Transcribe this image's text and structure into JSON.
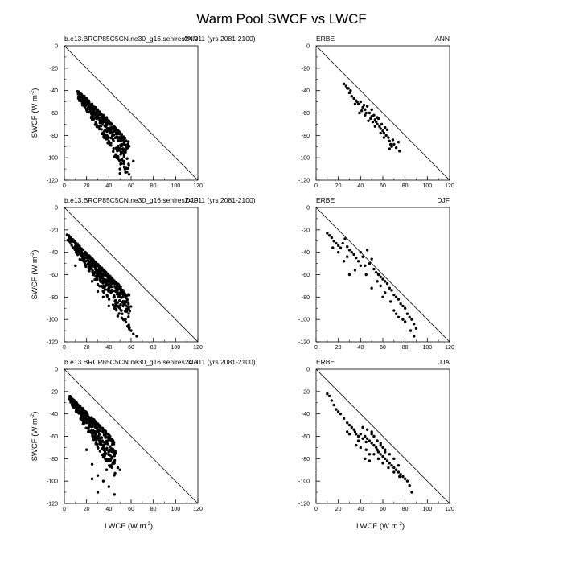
{
  "title": "Warm Pool SWCF vs LWCF",
  "x_axis_label": "LWCF (W m",
  "y_axis_label": "SWCF (W m",
  "unit_superscript": "-2",
  "chart_data": [
    {
      "type": "scatter",
      "left_label": "b.e13.BRCP85C5CN.ne30_g16.sehires24.011 (yrs 2081-2100)",
      "right_label": "ANN",
      "xlim": [
        0,
        120
      ],
      "ylim": [
        -120,
        0
      ],
      "xticks": [
        "0",
        "20",
        "40",
        "60",
        "80",
        "100",
        "120"
      ],
      "yticks": [
        "0",
        "-20",
        "-40",
        "-60",
        "-80",
        "-100",
        "-120"
      ],
      "reference_line": "one-to-one",
      "seed": 11,
      "n": 380,
      "points": [
        [
          13,
          -41
        ],
        [
          15,
          -43
        ],
        [
          18,
          -45
        ],
        [
          20,
          -47
        ],
        [
          22,
          -49
        ],
        [
          25,
          -52
        ],
        [
          28,
          -55
        ],
        [
          30,
          -57
        ],
        [
          32,
          -59
        ],
        [
          35,
          -62
        ],
        [
          38,
          -64
        ],
        [
          40,
          -67
        ],
        [
          42,
          -70
        ],
        [
          45,
          -73
        ],
        [
          48,
          -78
        ],
        [
          50,
          -82
        ],
        [
          52,
          -88
        ],
        [
          55,
          -95
        ],
        [
          45,
          -99
        ],
        [
          50,
          -110
        ],
        [
          55,
          -113
        ],
        [
          58,
          -107
        ],
        [
          62,
          -103
        ],
        [
          50,
          -114
        ],
        [
          47,
          -100
        ],
        [
          53,
          -92
        ]
      ]
    },
    {
      "type": "scatter",
      "left_label": "ERBE",
      "right_label": "ANN",
      "xlim": [
        0,
        120
      ],
      "ylim": [
        -120,
        0
      ],
      "xticks": [
        "0",
        "20",
        "40",
        "60",
        "80",
        "100",
        "120"
      ],
      "yticks": [
        "0",
        "-20",
        "-40",
        "-60",
        "-80",
        "-100",
        "-120"
      ],
      "reference_line": "one-to-one",
      "seed": 12,
      "n": 0,
      "points": [
        [
          25,
          -34
        ],
        [
          27,
          -36
        ],
        [
          29,
          -38
        ],
        [
          30,
          -42
        ],
        [
          32,
          -45
        ],
        [
          34,
          -47
        ],
        [
          36,
          -49
        ],
        [
          38,
          -52
        ],
        [
          40,
          -50
        ],
        [
          42,
          -55
        ],
        [
          44,
          -57
        ],
        [
          45,
          -60
        ],
        [
          46,
          -54
        ],
        [
          48,
          -60
        ],
        [
          50,
          -63
        ],
        [
          50,
          -57
        ],
        [
          52,
          -62
        ],
        [
          53,
          -66
        ],
        [
          54,
          -68
        ],
        [
          55,
          -70
        ],
        [
          56,
          -65
        ],
        [
          57,
          -72
        ],
        [
          58,
          -74
        ],
        [
          59,
          -70
        ],
        [
          60,
          -76
        ],
        [
          61,
          -78
        ],
        [
          62,
          -73
        ],
        [
          63,
          -80
        ],
        [
          64,
          -75
        ],
        [
          65,
          -82
        ],
        [
          66,
          -85
        ],
        [
          67,
          -88
        ],
        [
          68,
          -90
        ],
        [
          70,
          -88
        ],
        [
          72,
          -91
        ],
        [
          75,
          -94
        ],
        [
          74,
          -86
        ],
        [
          69,
          -84
        ],
        [
          44,
          -62
        ],
        [
          41,
          -58
        ],
        [
          39,
          -60
        ],
        [
          47,
          -67
        ],
        [
          35,
          -52
        ],
        [
          31,
          -40
        ],
        [
          28,
          -38
        ],
        [
          37,
          -50
        ],
        [
          43,
          -53
        ],
        [
          49,
          -65
        ],
        [
          51,
          -68
        ],
        [
          58,
          -78
        ],
        [
          61,
          -82
        ],
        [
          66,
          -92
        ],
        [
          55,
          -64
        ],
        [
          53,
          -72
        ]
      ]
    },
    {
      "type": "scatter",
      "left_label": "b.e13.BRCP85C5CN.ne30_g16.sehires24.011 (yrs 2081-2100)",
      "right_label": "DJF",
      "xlim": [
        0,
        120
      ],
      "ylim": [
        -120,
        0
      ],
      "xticks": [
        "0",
        "20",
        "40",
        "60",
        "80",
        "100",
        "120"
      ],
      "yticks": [
        "0",
        "-20",
        "-40",
        "-60",
        "-80",
        "-100",
        "-120"
      ],
      "reference_line": "one-to-one",
      "seed": 21,
      "n": 420,
      "points": [
        [
          4,
          -25
        ],
        [
          6,
          -27
        ],
        [
          8,
          -29
        ],
        [
          10,
          -32
        ],
        [
          12,
          -35
        ],
        [
          15,
          -38
        ],
        [
          18,
          -42
        ],
        [
          20,
          -45
        ],
        [
          22,
          -48
        ],
        [
          25,
          -52
        ],
        [
          28,
          -55
        ],
        [
          30,
          -58
        ],
        [
          32,
          -62
        ],
        [
          35,
          -65
        ],
        [
          38,
          -68
        ],
        [
          40,
          -72
        ],
        [
          42,
          -76
        ],
        [
          45,
          -80
        ],
        [
          48,
          -85
        ],
        [
          50,
          -90
        ],
        [
          52,
          -95
        ],
        [
          55,
          -100
        ],
        [
          58,
          -105
        ],
        [
          60,
          -110
        ],
        [
          62,
          -113
        ],
        [
          65,
          -115
        ],
        [
          48,
          -97
        ],
        [
          45,
          -90
        ],
        [
          40,
          -88
        ],
        [
          35,
          -80
        ],
        [
          30,
          -75
        ],
        [
          25,
          -66
        ],
        [
          10,
          -52
        ]
      ]
    },
    {
      "type": "scatter",
      "left_label": "ERBE",
      "right_label": "DJF",
      "xlim": [
        0,
        120
      ],
      "ylim": [
        -120,
        0
      ],
      "xticks": [
        "0",
        "20",
        "40",
        "60",
        "80",
        "100",
        "120"
      ],
      "yticks": [
        "0",
        "-20",
        "-40",
        "-60",
        "-80",
        "-100",
        "-120"
      ],
      "reference_line": "one-to-one",
      "seed": 22,
      "n": 0,
      "points": [
        [
          10,
          -23
        ],
        [
          12,
          -25
        ],
        [
          14,
          -27
        ],
        [
          16,
          -30
        ],
        [
          18,
          -32
        ],
        [
          20,
          -34
        ],
        [
          22,
          -36
        ],
        [
          24,
          -32
        ],
        [
          26,
          -28
        ],
        [
          28,
          -35
        ],
        [
          30,
          -38
        ],
        [
          32,
          -40
        ],
        [
          34,
          -42
        ],
        [
          36,
          -45
        ],
        [
          38,
          -48
        ],
        [
          40,
          -40
        ],
        [
          42,
          -44
        ],
        [
          44,
          -52
        ],
        [
          46,
          -38
        ],
        [
          48,
          -50
        ],
        [
          50,
          -46
        ],
        [
          52,
          -55
        ],
        [
          54,
          -58
        ],
        [
          56,
          -60
        ],
        [
          58,
          -62
        ],
        [
          60,
          -64
        ],
        [
          62,
          -66
        ],
        [
          64,
          -68
        ],
        [
          66,
          -72
        ],
        [
          68,
          -74
        ],
        [
          70,
          -78
        ],
        [
          72,
          -80
        ],
        [
          74,
          -82
        ],
        [
          76,
          -86
        ],
        [
          78,
          -88
        ],
        [
          80,
          -90
        ],
        [
          82,
          -95
        ],
        [
          84,
          -98
        ],
        [
          86,
          -100
        ],
        [
          88,
          -104
        ],
        [
          90,
          -108
        ],
        [
          85,
          -110
        ],
        [
          80,
          -102
        ],
        [
          74,
          -98
        ],
        [
          70,
          -92
        ],
        [
          67,
          -84
        ],
        [
          62,
          -76
        ],
        [
          58,
          -70
        ],
        [
          55,
          -66
        ],
        [
          40,
          -52
        ],
        [
          35,
          -56
        ],
        [
          30,
          -60
        ],
        [
          25,
          -48
        ],
        [
          20,
          -40
        ],
        [
          15,
          -36
        ],
        [
          28,
          -44
        ],
        [
          45,
          -60
        ],
        [
          50,
          -72
        ],
        [
          60,
          -80
        ],
        [
          72,
          -95
        ],
        [
          78,
          -100
        ],
        [
          88,
          -115
        ]
      ]
    },
    {
      "type": "scatter",
      "left_label": "b.e13.BRCP85C5CN.ne30_g16.sehires24.011 (yrs 2081-2100)",
      "right_label": "JJA",
      "xlim": [
        0,
        120
      ],
      "ylim": [
        -120,
        0
      ],
      "xticks": [
        "0",
        "20",
        "40",
        "60",
        "80",
        "100",
        "120"
      ],
      "yticks": [
        "0",
        "-20",
        "-40",
        "-60",
        "-80",
        "-100",
        "-120"
      ],
      "reference_line": "one-to-one",
      "seed": 31,
      "n": 360,
      "points": [
        [
          6,
          -25
        ],
        [
          8,
          -28
        ],
        [
          10,
          -32
        ],
        [
          12,
          -36
        ],
        [
          15,
          -40
        ],
        [
          18,
          -45
        ],
        [
          20,
          -48
        ],
        [
          22,
          -52
        ],
        [
          25,
          -55
        ],
        [
          28,
          -58
        ],
        [
          30,
          -62
        ],
        [
          32,
          -65
        ],
        [
          35,
          -68
        ],
        [
          38,
          -72
        ],
        [
          40,
          -76
        ],
        [
          42,
          -80
        ],
        [
          45,
          -84
        ],
        [
          48,
          -88
        ],
        [
          50,
          -90
        ],
        [
          20,
          -72
        ],
        [
          25,
          -85
        ],
        [
          30,
          -95
        ],
        [
          35,
          -100
        ],
        [
          40,
          -105
        ],
        [
          45,
          -112
        ],
        [
          30,
          -110
        ],
        [
          25,
          -98
        ],
        [
          38,
          -90
        ]
      ]
    },
    {
      "type": "scatter",
      "left_label": "ERBE",
      "right_label": "JJA",
      "xlim": [
        0,
        120
      ],
      "ylim": [
        -120,
        0
      ],
      "xticks": [
        "0",
        "20",
        "40",
        "60",
        "80",
        "100",
        "120"
      ],
      "yticks": [
        "0",
        "-20",
        "-40",
        "-60",
        "-80",
        "-100",
        "-120"
      ],
      "reference_line": "one-to-one",
      "seed": 32,
      "n": 0,
      "points": [
        [
          10,
          -22
        ],
        [
          12,
          -24
        ],
        [
          14,
          -28
        ],
        [
          16,
          -32
        ],
        [
          18,
          -36
        ],
        [
          20,
          -38
        ],
        [
          22,
          -40
        ],
        [
          25,
          -44
        ],
        [
          28,
          -48
        ],
        [
          30,
          -50
        ],
        [
          32,
          -52
        ],
        [
          34,
          -54
        ],
        [
          35,
          -56
        ],
        [
          36,
          -58
        ],
        [
          38,
          -60
        ],
        [
          40,
          -58
        ],
        [
          42,
          -62
        ],
        [
          44,
          -60
        ],
        [
          45,
          -65
        ],
        [
          46,
          -62
        ],
        [
          48,
          -64
        ],
        [
          50,
          -66
        ],
        [
          52,
          -68
        ],
        [
          54,
          -70
        ],
        [
          55,
          -72
        ],
        [
          56,
          -74
        ],
        [
          58,
          -76
        ],
        [
          60,
          -78
        ],
        [
          62,
          -80
        ],
        [
          64,
          -82
        ],
        [
          66,
          -84
        ],
        [
          68,
          -86
        ],
        [
          70,
          -88
        ],
        [
          72,
          -90
        ],
        [
          74,
          -92
        ],
        [
          76,
          -94
        ],
        [
          78,
          -96
        ],
        [
          80,
          -98
        ],
        [
          82,
          -100
        ],
        [
          84,
          -104
        ],
        [
          86,
          -110
        ],
        [
          40,
          -70
        ],
        [
          45,
          -72
        ],
        [
          48,
          -76
        ],
        [
          50,
          -58
        ],
        [
          52,
          -60
        ],
        [
          55,
          -64
        ],
        [
          58,
          -66
        ],
        [
          60,
          -70
        ],
        [
          62,
          -74
        ],
        [
          42,
          -52
        ],
        [
          46,
          -54
        ],
        [
          50,
          -56
        ],
        [
          38,
          -64
        ],
        [
          36,
          -68
        ],
        [
          60,
          -84
        ],
        [
          65,
          -88
        ],
        [
          70,
          -92
        ],
        [
          75,
          -96
        ],
        [
          44,
          -80
        ],
        [
          48,
          -82
        ],
        [
          52,
          -76
        ],
        [
          56,
          -80
        ],
        [
          58,
          -68
        ],
        [
          62,
          -72
        ],
        [
          66,
          -76
        ],
        [
          70,
          -80
        ],
        [
          74,
          -86
        ],
        [
          30,
          -58
        ],
        [
          28,
          -56
        ]
      ]
    }
  ]
}
